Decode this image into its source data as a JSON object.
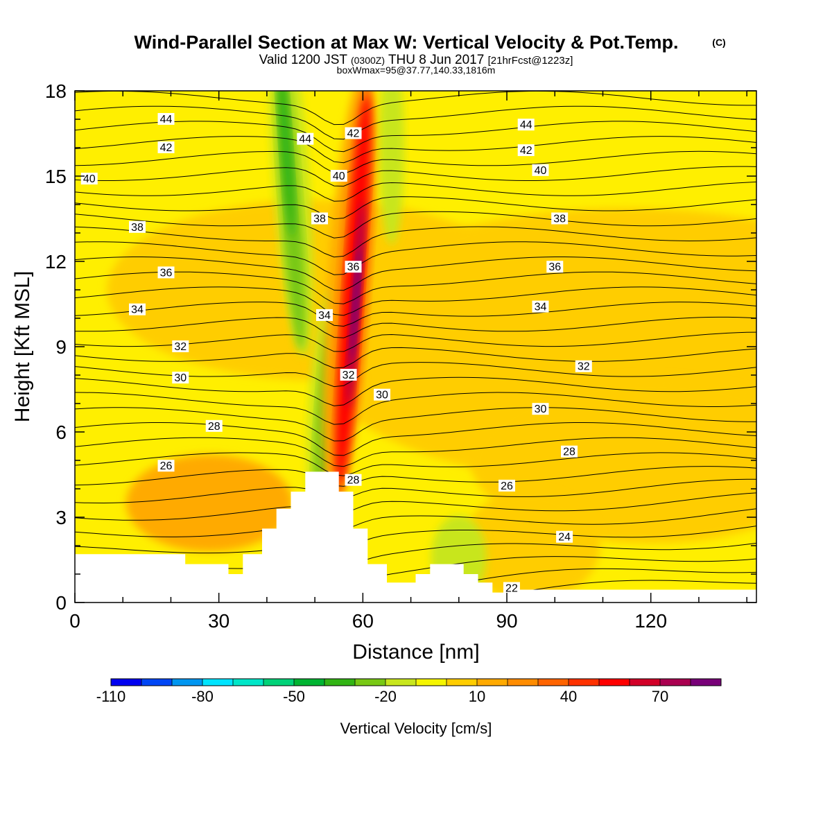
{
  "title": "Wind-Parallel Section at Max W: Vertical Velocity & Pot.Temp.",
  "title_mark": "(C)",
  "subtitle_main_a": "Valid 1200 JST",
  "subtitle_z": "(0300Z)",
  "subtitle_main_b": "THU 8 Jun 2017",
  "subtitle_fcst": "[21hrFcst@1223z]",
  "subtitle2": "boxWmax=95@37.77,140.33,1816m",
  "chart_data": {
    "type": "contour",
    "xlabel": "Distance [nm]",
    "ylabel": "Height [Kft MSL]",
    "xlim": [
      0,
      142
    ],
    "ylim": [
      0,
      18
    ],
    "x_ticks": [
      "0",
      "30",
      "60",
      "90",
      "120"
    ],
    "x_tick_values": [
      0,
      30,
      60,
      90,
      120
    ],
    "y_ticks": [
      "0",
      "3",
      "6",
      "9",
      "12",
      "15",
      "18"
    ],
    "y_tick_values": [
      0,
      3,
      6,
      9,
      12,
      15,
      18
    ],
    "colorbar": {
      "title": "Vertical Velocity [cm/s]",
      "tick_labels": [
        "-110",
        "-80",
        "-50",
        "-20",
        "10",
        "40",
        "70"
      ],
      "tick_values": [
        -110,
        -80,
        -50,
        -20,
        10,
        40,
        70
      ],
      "min": -110,
      "max": 90,
      "step": 10,
      "colors": [
        "#0000f0",
        "#0046f5",
        "#0096f0",
        "#00e4ff",
        "#00e6c8",
        "#00d278",
        "#00b432",
        "#32b414",
        "#78c814",
        "#c8e61e",
        "#f5f500",
        "#ffcd00",
        "#ffaa00",
        "#ff8c00",
        "#ff6400",
        "#ff3200",
        "#ff0000",
        "#d20028",
        "#aa0050",
        "#780078"
      ]
    },
    "theta_contour_labels": [
      {
        "text": "44",
        "x": 19,
        "y": 17.0
      },
      {
        "text": "44",
        "x": 48,
        "y": 16.3
      },
      {
        "text": "42",
        "x": 58,
        "y": 16.5
      },
      {
        "text": "44",
        "x": 94,
        "y": 16.8
      },
      {
        "text": "42",
        "x": 19,
        "y": 16.0
      },
      {
        "text": "42",
        "x": 94,
        "y": 15.9
      },
      {
        "text": "40",
        "x": 3,
        "y": 14.9
      },
      {
        "text": "40",
        "x": 55,
        "y": 15.0
      },
      {
        "text": "40",
        "x": 97,
        "y": 15.2
      },
      {
        "text": "38",
        "x": 13,
        "y": 13.2
      },
      {
        "text": "38",
        "x": 51,
        "y": 13.5
      },
      {
        "text": "38",
        "x": 101,
        "y": 13.5
      },
      {
        "text": "36",
        "x": 19,
        "y": 11.6
      },
      {
        "text": "36",
        "x": 58,
        "y": 11.8
      },
      {
        "text": "36",
        "x": 100,
        "y": 11.8
      },
      {
        "text": "34",
        "x": 13,
        "y": 10.3
      },
      {
        "text": "34",
        "x": 52,
        "y": 10.1
      },
      {
        "text": "34",
        "x": 97,
        "y": 10.4
      },
      {
        "text": "32",
        "x": 22,
        "y": 9.0
      },
      {
        "text": "32",
        "x": 57,
        "y": 8.0
      },
      {
        "text": "32",
        "x": 106,
        "y": 8.3
      },
      {
        "text": "30",
        "x": 22,
        "y": 7.9
      },
      {
        "text": "30",
        "x": 64,
        "y": 7.3
      },
      {
        "text": "30",
        "x": 97,
        "y": 6.8
      },
      {
        "text": "28",
        "x": 29,
        "y": 6.2
      },
      {
        "text": "28",
        "x": 58,
        "y": 4.3
      },
      {
        "text": "28",
        "x": 103,
        "y": 5.3
      },
      {
        "text": "26",
        "x": 19,
        "y": 4.8
      },
      {
        "text": "26",
        "x": 90,
        "y": 4.1
      },
      {
        "text": "24",
        "x": 102,
        "y": 2.3
      },
      {
        "text": "22",
        "x": 91,
        "y": 0.5
      }
    ],
    "terrain": [
      [
        0,
        1.7
      ],
      [
        23,
        1.7
      ],
      [
        23,
        1.35
      ],
      [
        32,
        1.35
      ],
      [
        32,
        1.0
      ],
      [
        35,
        1.0
      ],
      [
        35,
        1.7
      ],
      [
        39,
        1.7
      ],
      [
        39,
        2.6
      ],
      [
        42,
        2.6
      ],
      [
        42,
        3.3
      ],
      [
        45,
        3.3
      ],
      [
        45,
        3.9
      ],
      [
        48,
        3.9
      ],
      [
        48,
        4.6
      ],
      [
        55,
        4.6
      ],
      [
        55,
        3.9
      ],
      [
        58,
        3.9
      ],
      [
        58,
        2.6
      ],
      [
        61,
        2.6
      ],
      [
        61,
        1.35
      ],
      [
        65,
        1.35
      ],
      [
        65,
        0.7
      ],
      [
        71,
        0.7
      ],
      [
        71,
        1.0
      ],
      [
        74,
        1.0
      ],
      [
        74,
        1.35
      ],
      [
        81,
        1.35
      ],
      [
        81,
        1.0
      ],
      [
        84,
        1.0
      ],
      [
        84,
        0.7
      ],
      [
        87,
        0.7
      ],
      [
        87,
        0.35
      ],
      [
        91,
        0.35
      ],
      [
        91,
        0.45
      ],
      [
        142,
        0.45
      ]
    ]
  }
}
